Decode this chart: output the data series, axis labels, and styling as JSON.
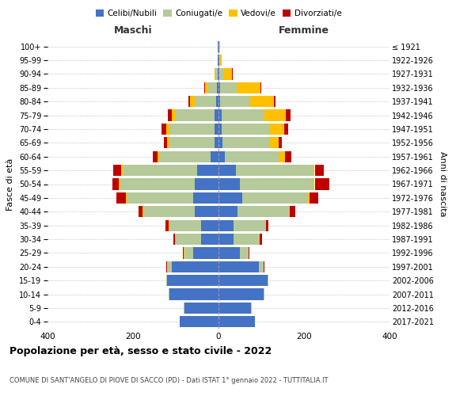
{
  "age_groups": [
    "0-4",
    "5-9",
    "10-14",
    "15-19",
    "20-24",
    "25-29",
    "30-34",
    "35-39",
    "40-44",
    "45-49",
    "50-54",
    "55-59",
    "60-64",
    "65-69",
    "70-74",
    "75-79",
    "80-84",
    "85-89",
    "90-94",
    "95-99",
    "100+"
  ],
  "birth_years": [
    "2017-2021",
    "2012-2016",
    "2007-2011",
    "2002-2006",
    "1997-2001",
    "1992-1996",
    "1987-1991",
    "1982-1986",
    "1977-1981",
    "1972-1976",
    "1967-1971",
    "1962-1966",
    "1957-1961",
    "1952-1956",
    "1947-1951",
    "1942-1946",
    "1937-1941",
    "1932-1936",
    "1927-1931",
    "1922-1926",
    "≤ 1921"
  ],
  "males": {
    "celibi": [
      90,
      80,
      115,
      120,
      110,
      60,
      40,
      40,
      55,
      60,
      55,
      50,
      18,
      10,
      10,
      10,
      5,
      4,
      2,
      1,
      1
    ],
    "coniugati": [
      0,
      2,
      2,
      2,
      10,
      20,
      60,
      75,
      120,
      155,
      175,
      175,
      120,
      105,
      105,
      90,
      50,
      20,
      5,
      1,
      0
    ],
    "vedovi": [
      0,
      0,
      0,
      0,
      1,
      1,
      1,
      1,
      2,
      2,
      3,
      3,
      4,
      5,
      8,
      10,
      12,
      8,
      2,
      0,
      0
    ],
    "divorziati": [
      0,
      0,
      0,
      0,
      2,
      2,
      5,
      8,
      10,
      22,
      15,
      18,
      12,
      7,
      10,
      8,
      3,
      2,
      1,
      0,
      0
    ]
  },
  "females": {
    "nubili": [
      85,
      75,
      105,
      115,
      95,
      50,
      35,
      35,
      45,
      55,
      50,
      40,
      15,
      10,
      8,
      8,
      4,
      3,
      2,
      1,
      0
    ],
    "coniugate": [
      0,
      2,
      2,
      2,
      10,
      20,
      60,
      75,
      120,
      155,
      170,
      180,
      125,
      110,
      110,
      100,
      70,
      40,
      10,
      2,
      1
    ],
    "vedove": [
      0,
      0,
      0,
      0,
      1,
      1,
      1,
      2,
      2,
      3,
      5,
      5,
      15,
      20,
      35,
      50,
      55,
      55,
      20,
      5,
      2
    ],
    "divorziate": [
      0,
      0,
      0,
      0,
      2,
      2,
      5,
      5,
      12,
      20,
      35,
      22,
      15,
      8,
      10,
      10,
      5,
      2,
      1,
      0,
      0
    ]
  },
  "colors": {
    "celibi_nubili": "#4472c4",
    "coniugati": "#b5c99a",
    "vedovi": "#ffc000",
    "divorziati": "#c00000"
  },
  "title": "Popolazione per età, sesso e stato civile - 2022",
  "subtitle": "COMUNE DI SANT'ANGELO DI PIOVE DI SACCO (PD) - Dati ISTAT 1° gennaio 2022 - TUTTITALIA.IT",
  "xlabel_left": "Maschi",
  "xlabel_right": "Femmine",
  "ylabel_left": "Fasce di età",
  "ylabel_right": "Anni di nascita",
  "xlim": 400,
  "background_color": "#ffffff",
  "grid_color": "#cccccc"
}
